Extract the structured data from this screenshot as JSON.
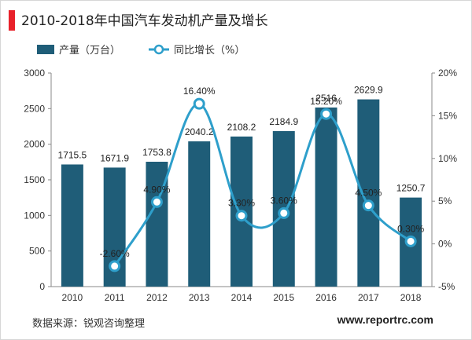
{
  "header": {
    "title": "2010-2018年中国汽车发动机产量及增长",
    "accent_color": "#e8212a"
  },
  "footer": {
    "source": "数据来源：锐观咨询整理",
    "site": "www.reportrc.com"
  },
  "chart_data": {
    "type": "bar",
    "title": "2010-2018年中国汽车发动机产量及增长",
    "categories": [
      "2010",
      "2011",
      "2012",
      "2013",
      "2014",
      "2015",
      "2016",
      "2017",
      "2018"
    ],
    "series": [
      {
        "name": "产量（万台）",
        "type": "bar",
        "axis": "left",
        "color": "#1f5d78",
        "values": [
          1715.5,
          1671.9,
          1753.8,
          2040.2,
          2108.2,
          2184.9,
          2516,
          2629.9,
          1250.7
        ],
        "labels": [
          "1715.5",
          "1671.9",
          "1753.8",
          "2040.2",
          "2108.2",
          "2184.9",
          "2516",
          "2629.9",
          "1250.7"
        ]
      },
      {
        "name": "同比增长（%）",
        "type": "line",
        "axis": "right",
        "color": "#2e9fcb",
        "smooth": true,
        "values": [
          null,
          -2.6,
          4.9,
          16.4,
          3.3,
          3.6,
          15.2,
          4.5,
          0.3
        ],
        "labels": [
          "",
          "-2.60%",
          "4.90%",
          "16.40%",
          "3.30%",
          "3.60%",
          "15.20%",
          "4.50%",
          "0.30%"
        ]
      }
    ],
    "y_left": {
      "min": 0,
      "max": 3000,
      "ticks": [
        0,
        500,
        1000,
        1500,
        2000,
        2500,
        3000
      ],
      "tick_labels": [
        "0",
        "500",
        "1000",
        "1500",
        "2000",
        "2500",
        "3000"
      ]
    },
    "y_right": {
      "min": -5,
      "max": 20,
      "ticks": [
        -5,
        0,
        5,
        10,
        15,
        20
      ],
      "tick_labels": [
        "-5%",
        "0%",
        "5%",
        "10%",
        "15%",
        "20%"
      ]
    },
    "legend_position": "top-left",
    "grid": false
  }
}
